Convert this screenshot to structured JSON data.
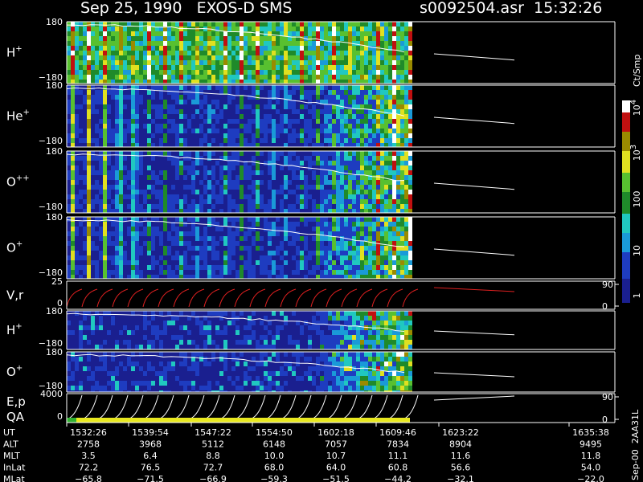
{
  "header": {
    "title": "Sep 25, 1990   EXOS-D SMS",
    "file": "s0092504.asr  15:32:26"
  },
  "panels": [
    {
      "label": "H",
      "sup": "+",
      "ticks": [
        "180",
        "−180"
      ]
    },
    {
      "label": "He",
      "sup": "+",
      "ticks": [
        "180",
        "−180"
      ]
    },
    {
      "label": "O",
      "sup": "++",
      "ticks": [
        "180",
        "−180"
      ]
    },
    {
      "label": "O",
      "sup": "+",
      "ticks": [
        "180",
        "−180"
      ]
    },
    {
      "label": "V,r",
      "ticks": [
        "25",
        "0"
      ],
      "right_ticks": [
        "90",
        "0"
      ]
    },
    {
      "label": "H",
      "sup": "+",
      "ticks": [
        "180",
        "−180"
      ]
    },
    {
      "label": "O",
      "sup": "+",
      "ticks": [
        "180",
        "−180"
      ]
    },
    {
      "label": "E,p",
      "label2": "QA",
      "ticks": [
        "4000",
        "0"
      ],
      "right_ticks": [
        "90",
        "0"
      ]
    }
  ],
  "colorbar": {
    "label": "Ct/Smp",
    "ticks": [
      {
        "text": "10",
        "sup": "4"
      },
      {
        "text": "10",
        "sup": "3"
      },
      {
        "text": "100"
      },
      {
        "text": "10"
      },
      {
        "text": "1"
      }
    ]
  },
  "ephemeris": [
    {
      "name": "UT",
      "values": [
        "1532:26",
        "1539:54",
        "1547:22",
        "1554:50",
        "1602:18",
        "1609:46",
        "1623:22",
        "1635:38"
      ]
    },
    {
      "name": "ALT",
      "values": [
        "2758",
        "3968",
        "5112",
        "6148",
        "7057",
        "7834",
        "8904",
        "9495"
      ]
    },
    {
      "name": "MLT",
      "values": [
        "3.5",
        "6.4",
        "8.8",
        "10.0",
        "10.7",
        "11.1",
        "11.6",
        "11.8"
      ]
    },
    {
      "name": "InLat",
      "values": [
        "72.2",
        "76.5",
        "72.7",
        "68.0",
        "64.0",
        "60.8",
        "56.6",
        "54.0"
      ]
    },
    {
      "name": "MLat",
      "values": [
        "−65.8",
        "−71.5",
        "−66.9",
        "−59.3",
        "−51.5",
        "−44.2",
        "−32.1",
        "−22.0"
      ]
    }
  ],
  "footer": "Sep-00  2AA31L"
}
